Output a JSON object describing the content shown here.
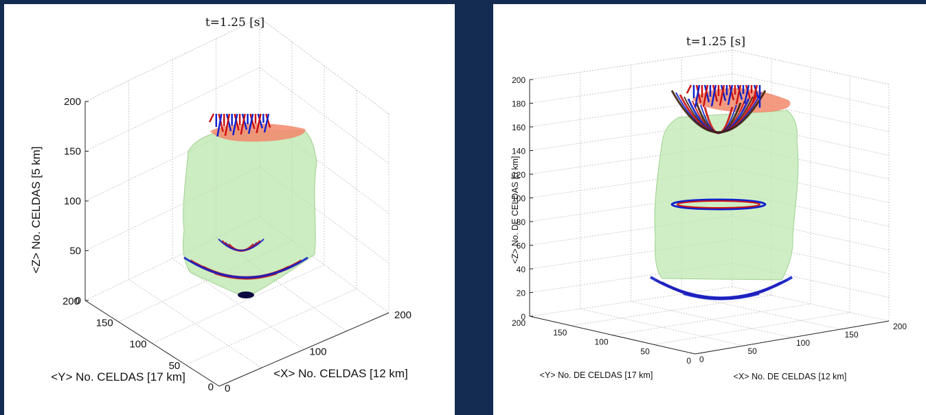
{
  "chart_data": [
    {
      "type": "3d-isosurface",
      "title": "t=1.25 [s]",
      "xlabel": "<X> No. CELDAS [12 km]",
      "ylabel": "<Y> No. CELDAS [17 km]",
      "zlabel": "<Z> No. CELDAS [5 km]",
      "xticks": [
        "0",
        "100",
        "200"
      ],
      "yticks": [
        "0",
        "50",
        "100",
        "150",
        "200"
      ],
      "zticks": [
        "0",
        "50",
        "100",
        "150",
        "200"
      ],
      "xlim": [
        0,
        200
      ],
      "ylim": [
        0,
        200
      ],
      "zlim": [
        0,
        200
      ],
      "grid": true
    },
    {
      "type": "3d-isosurface",
      "title": "t=1.25 [s]",
      "xlabel": "<X> No.  DE CELDAS [12 km]",
      "ylabel": "<Y> No. DE CELDAS [17 km]",
      "zlabel": "<Z> No. DE CELDAS [5 km]",
      "xticks": [
        "0",
        "50",
        "100",
        "150",
        "200"
      ],
      "yticks": [
        "0",
        "50",
        "100",
        "150",
        "200"
      ],
      "zticks": [
        "0",
        "20",
        "40",
        "60",
        "80",
        "100",
        "120",
        "140",
        "160",
        "180",
        "200"
      ],
      "xlim": [
        0,
        200
      ],
      "ylim": [
        0,
        200
      ],
      "zlim": [
        0,
        200
      ],
      "grid": true
    }
  ],
  "colors": {
    "background": "#142b52",
    "volume": "#b8e5a9",
    "top_surface": "#f1886b",
    "wave_red": "#cc1111",
    "wave_blue": "#1122cc"
  }
}
